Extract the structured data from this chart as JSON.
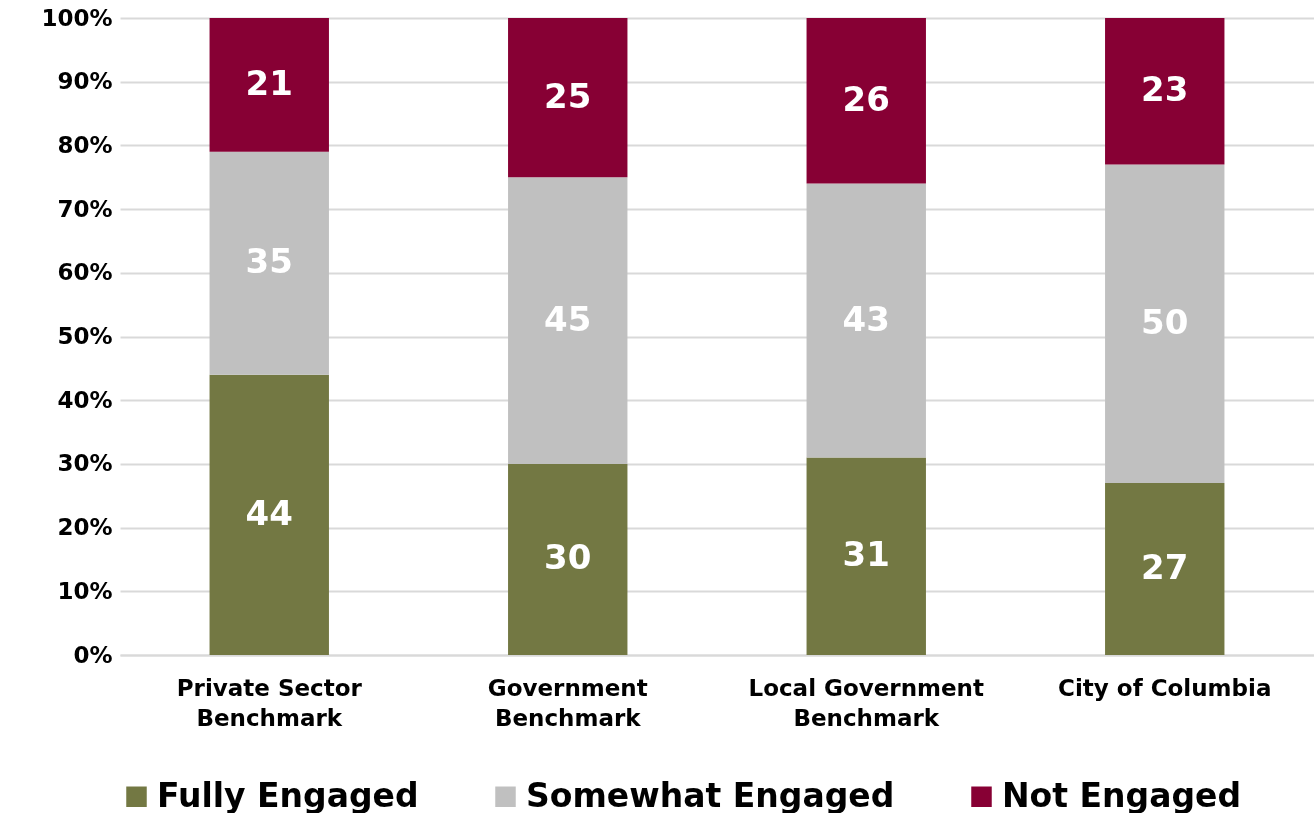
{
  "chart_data": {
    "type": "bar",
    "stacked": true,
    "data_labels": true,
    "grid": "y",
    "legend": "bottom",
    "categories": [
      "Private Sector Benchmark",
      "Government Benchmark",
      "Local Government Benchmark",
      "City of Columbia"
    ],
    "series": [
      {
        "name": "Fully Engaged",
        "color": "#737843",
        "values": [
          44,
          30,
          31,
          27
        ]
      },
      {
        "name": "Somewhat Engaged",
        "color": "#c0c0c0",
        "values": [
          35,
          45,
          43,
          50
        ]
      },
      {
        "name": "Not Engaged",
        "color": "#870034",
        "values": [
          21,
          25,
          26,
          23
        ]
      }
    ],
    "ylim": [
      0,
      100
    ],
    "yticks": [
      {
        "value": 0,
        "label": "0%"
      },
      {
        "value": 10,
        "label": "10%"
      },
      {
        "value": 20,
        "label": "20%"
      },
      {
        "value": 30,
        "label": "30%"
      },
      {
        "value": 40,
        "label": "40%"
      },
      {
        "value": 50,
        "label": "50%"
      },
      {
        "value": 60,
        "label": "60%"
      },
      {
        "value": 70,
        "label": "70%"
      },
      {
        "value": 80,
        "label": "80%"
      },
      {
        "value": 90,
        "label": "90%"
      },
      {
        "value": 100,
        "label": "100%"
      }
    ]
  }
}
